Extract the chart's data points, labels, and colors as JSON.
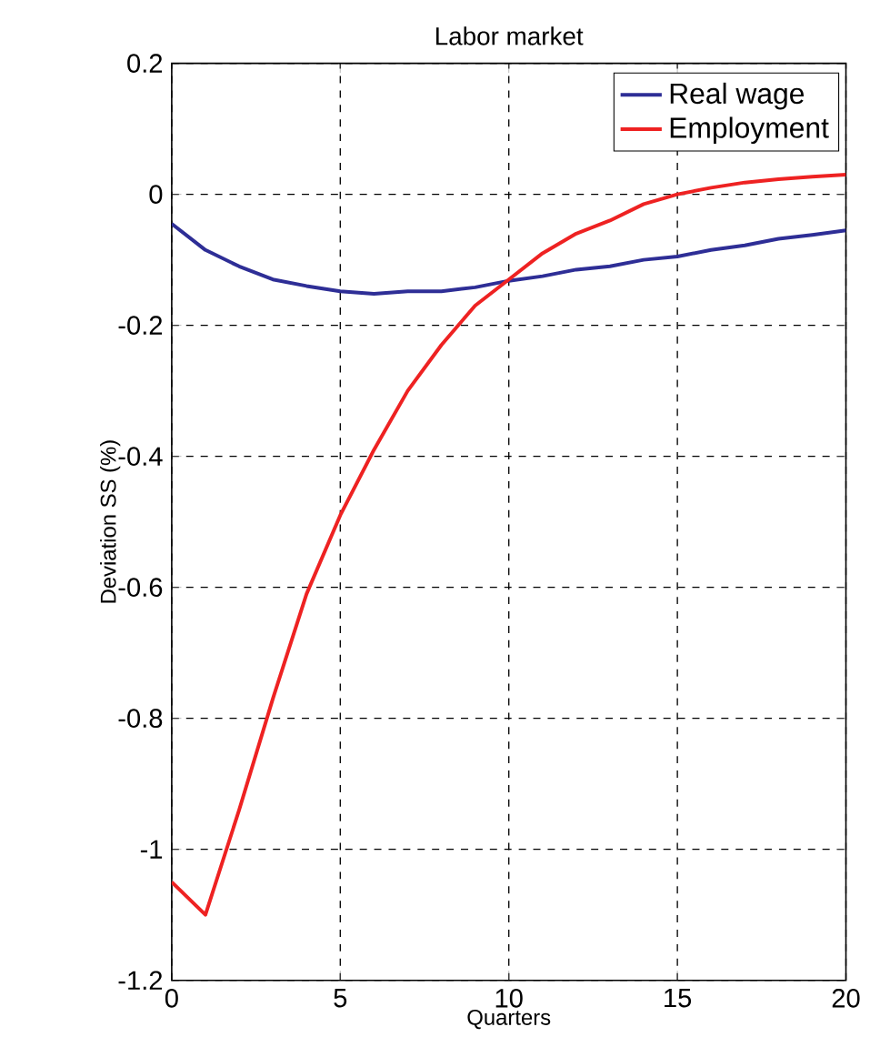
{
  "chart_data": {
    "type": "line",
    "title": "Labor market",
    "xlabel": "Quarters",
    "ylabel": "Deviation SS (%)",
    "x": [
      0,
      1,
      2,
      3,
      4,
      5,
      6,
      7,
      8,
      9,
      10,
      11,
      12,
      13,
      14,
      15,
      16,
      17,
      18,
      19,
      20
    ],
    "series": [
      {
        "name": "Real wage",
        "color": "#2e2e96",
        "values": [
          -0.045,
          -0.085,
          -0.11,
          -0.13,
          -0.14,
          -0.148,
          -0.152,
          -0.148,
          -0.148,
          -0.142,
          -0.132,
          -0.125,
          -0.115,
          -0.11,
          -0.1,
          -0.095,
          -0.085,
          -0.078,
          -0.068,
          -0.062,
          -0.055
        ]
      },
      {
        "name": "Employment",
        "color": "#ee2222",
        "values": [
          -1.05,
          -1.1,
          -0.94,
          -0.77,
          -0.61,
          -0.49,
          -0.39,
          -0.3,
          -0.23,
          -0.17,
          -0.13,
          -0.09,
          -0.06,
          -0.04,
          -0.015,
          0,
          0.01,
          0.018,
          0.023,
          0.027,
          0.03
        ]
      }
    ],
    "xlim": [
      0,
      20
    ],
    "xticks": [
      0,
      5,
      10,
      15,
      20
    ],
    "ylim": [
      -1.2,
      0.2
    ],
    "yticks": [
      -1.2,
      -1,
      -0.8,
      -0.6,
      -0.4,
      -0.2,
      0,
      0.2
    ],
    "grid": true,
    "legend": "top right",
    "marker": "none",
    "line_style": "solid"
  }
}
